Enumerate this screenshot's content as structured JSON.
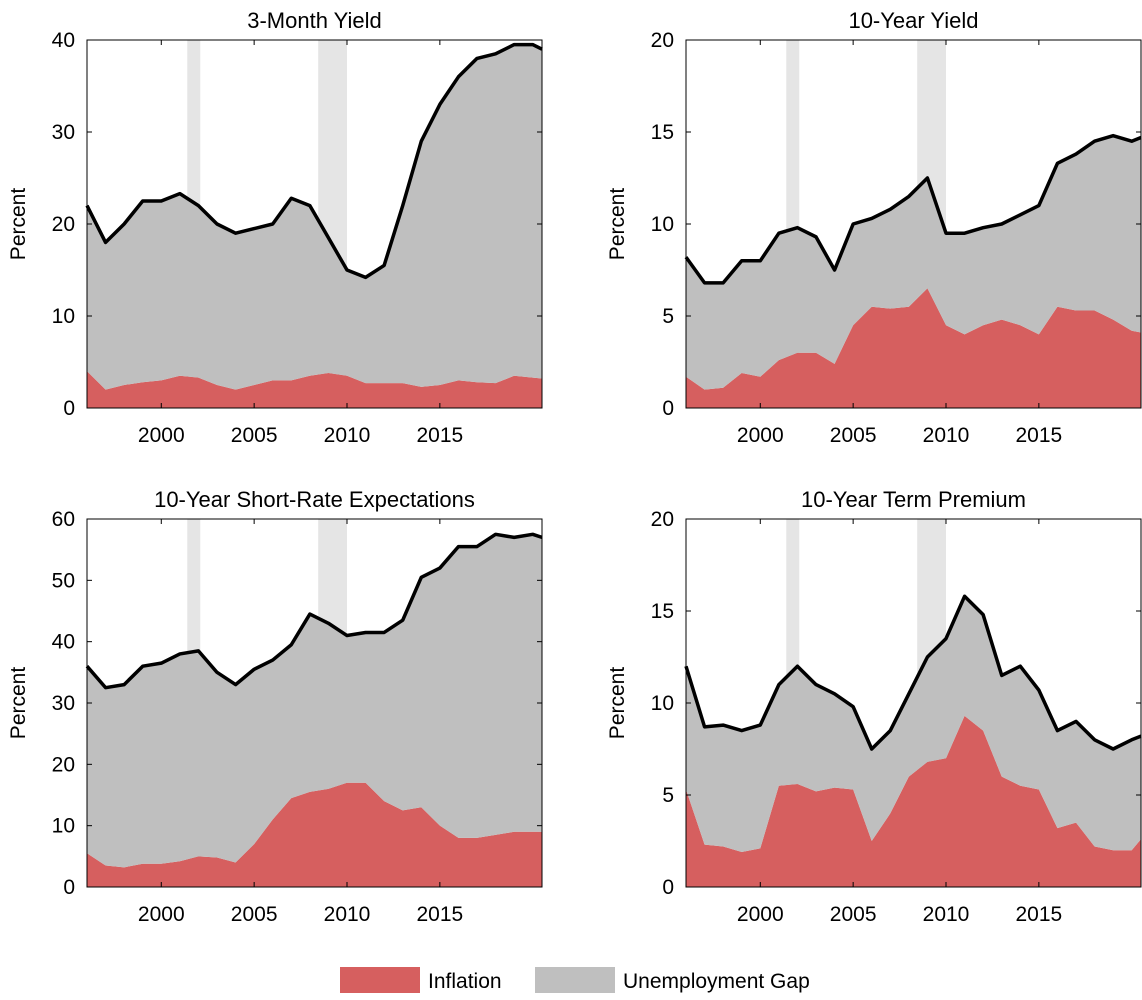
{
  "chart_data": [
    {
      "type": "stacked-area",
      "title": "3-Month Yield",
      "y_label": "Percent",
      "x": [
        1996,
        1997,
        1998,
        1999,
        2000,
        2001,
        2002,
        2003,
        2004,
        2005,
        2006,
        2007,
        2008,
        2009,
        2010,
        2011,
        2012,
        2013,
        2014,
        2015,
        2016,
        2017,
        2018,
        2019,
        2020,
        2020.5
      ],
      "series": [
        {
          "name": "Inflation",
          "color": "#d65f5f",
          "values": [
            4,
            2,
            2.5,
            2.8,
            3,
            3.5,
            3.3,
            2.5,
            2,
            2.5,
            3,
            3,
            3.5,
            3.8,
            3.5,
            2.7,
            2.7,
            2.7,
            2.3,
            2.5,
            3,
            2.8,
            2.7,
            3.5,
            3.3,
            3.2
          ]
        },
        {
          "name": "Unemployment Gap",
          "color": "#bfbfbf",
          "values": [
            18,
            16,
            17.5,
            19.7,
            19.5,
            19.8,
            18.7,
            17.5,
            17,
            17,
            17,
            19.8,
            18.5,
            14.7,
            11.5,
            11.5,
            12.8,
            19.3,
            26.7,
            30.5,
            33,
            35.2,
            35.8,
            36,
            36.2,
            35.8
          ]
        }
      ],
      "shaded_periods": [
        [
          2001.4,
          2002.1
        ],
        [
          2008.45,
          2010
        ]
      ],
      "shade_color": "#e5e5e5",
      "xlim": [
        1996,
        2020.5
      ],
      "xticks": [
        2000,
        2005,
        2010,
        2015
      ],
      "ylim": [
        0,
        40
      ],
      "yticks": [
        0,
        10,
        20,
        30,
        40
      ]
    },
    {
      "type": "stacked-area",
      "title": "10-Year Yield",
      "y_label": "Percent",
      "x": [
        1996,
        1997,
        1998,
        1999,
        2000,
        2001,
        2002,
        2003,
        2004,
        2005,
        2006,
        2007,
        2008,
        2009,
        2010,
        2011,
        2012,
        2013,
        2014,
        2015,
        2016,
        2017,
        2018,
        2019,
        2020,
        2020.5
      ],
      "series": [
        {
          "name": "Inflation",
          "color": "#d65f5f",
          "values": [
            1.7,
            1,
            1.1,
            1.9,
            1.7,
            2.6,
            3,
            3,
            2.4,
            4.5,
            5.5,
            5.4,
            5.5,
            6.5,
            4.5,
            4,
            4.5,
            4.8,
            4.5,
            4,
            5.5,
            5.3,
            5.3,
            4.8,
            4.2,
            4.1
          ]
        },
        {
          "name": "Unemployment Gap",
          "color": "#bfbfbf",
          "values": [
            6.5,
            5.8,
            5.7,
            6.1,
            6.3,
            6.9,
            6.8,
            6.3,
            5.1,
            5.5,
            4.8,
            5.4,
            6,
            6,
            5,
            5.5,
            5.3,
            5.2,
            6,
            7,
            7.8,
            8.5,
            9.2,
            10,
            10.3,
            10.6
          ]
        }
      ],
      "shaded_periods": [
        [
          2001.4,
          2002.1
        ],
        [
          2008.45,
          2010
        ]
      ],
      "shade_color": "#e5e5e5",
      "xlim": [
        1996,
        2020.5
      ],
      "xticks": [
        2000,
        2005,
        2010,
        2015
      ],
      "ylim": [
        0,
        20
      ],
      "yticks": [
        0,
        5,
        10,
        15,
        20
      ]
    },
    {
      "type": "stacked-area",
      "title": "10-Year Short-Rate Expectations",
      "y_label": "Percent",
      "x": [
        1996,
        1997,
        1998,
        1999,
        2000,
        2001,
        2002,
        2003,
        2004,
        2005,
        2006,
        2007,
        2008,
        2009,
        2010,
        2011,
        2012,
        2013,
        2014,
        2015,
        2016,
        2017,
        2018,
        2019,
        2020,
        2020.5
      ],
      "series": [
        {
          "name": "Inflation",
          "color": "#d65f5f",
          "values": [
            5.5,
            3.5,
            3.2,
            3.8,
            3.8,
            4.2,
            5,
            4.8,
            4,
            7,
            11,
            14.5,
            15.5,
            16,
            17,
            17,
            14,
            12.5,
            13,
            10,
            8,
            8,
            8.5,
            9,
            9,
            9
          ]
        },
        {
          "name": "Unemployment Gap",
          "color": "#bfbfbf",
          "values": [
            30.5,
            29,
            29.8,
            32.2,
            32.7,
            33.8,
            33.5,
            30.2,
            29,
            28.5,
            26,
            25,
            29,
            27,
            24,
            24.5,
            27.5,
            31,
            37.5,
            42,
            47.5,
            47.5,
            49,
            48,
            48.5,
            48
          ]
        }
      ],
      "shaded_periods": [
        [
          2001.4,
          2002.1
        ],
        [
          2008.45,
          2010
        ]
      ],
      "shade_color": "#e5e5e5",
      "xlim": [
        1996,
        2020.5
      ],
      "xticks": [
        2000,
        2005,
        2010,
        2015
      ],
      "ylim": [
        0,
        60
      ],
      "yticks": [
        0,
        10,
        20,
        30,
        40,
        50,
        60
      ]
    },
    {
      "type": "stacked-area",
      "title": "10-Year Term Premium",
      "y_label": "Percent",
      "x": [
        1996,
        1997,
        1998,
        1999,
        2000,
        2001,
        2002,
        2003,
        2004,
        2005,
        2006,
        2007,
        2008,
        2009,
        2010,
        2011,
        2012,
        2013,
        2014,
        2015,
        2016,
        2017,
        2018,
        2019,
        2020,
        2020.5
      ],
      "series": [
        {
          "name": "Inflation",
          "color": "#d65f5f",
          "values": [
            5.3,
            2.3,
            2.2,
            1.9,
            2.1,
            5.5,
            5.6,
            5.2,
            5.4,
            5.3,
            2.5,
            4,
            6,
            6.8,
            7,
            9.3,
            8.5,
            6,
            5.5,
            5.3,
            3.2,
            3.5,
            2.2,
            2,
            2,
            2.6
          ]
        },
        {
          "name": "Unemployment Gap",
          "color": "#bfbfbf",
          "values": [
            6.7,
            6.4,
            6.6,
            6.6,
            6.7,
            5.5,
            6.4,
            5.8,
            5.1,
            4.5,
            5,
            4.5,
            4.5,
            5.7,
            6.5,
            6.5,
            6.3,
            5.5,
            6.5,
            5.4,
            5.3,
            5.5,
            5.8,
            5.5,
            6,
            5.6
          ]
        }
      ],
      "shaded_periods": [
        [
          2001.4,
          2002.1
        ],
        [
          2008.45,
          2010
        ]
      ],
      "shade_color": "#e5e5e5",
      "xlim": [
        1996,
        2020.5
      ],
      "xticks": [
        2000,
        2005,
        2010,
        2015
      ],
      "ylim": [
        0,
        20
      ],
      "yticks": [
        0,
        5,
        10,
        15,
        20
      ]
    }
  ]
}
